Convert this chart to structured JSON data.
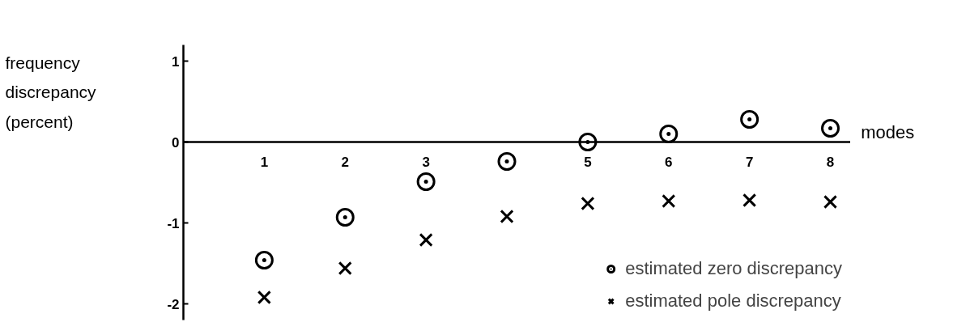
{
  "chart_data": {
    "type": "scatter",
    "xlabel": "modes",
    "ylabel": "frequency discrepancy (percent)",
    "x": [
      1,
      2,
      3,
      4,
      5,
      6,
      7,
      8
    ],
    "series": [
      {
        "name": "estimated zero discrepancy",
        "color": "#000000",
        "marker": "circle",
        "values": [
          -1.46,
          -0.93,
          -0.49,
          -0.24,
          0.0,
          0.1,
          0.28,
          0.17
        ]
      },
      {
        "name": "estimated pole discrepancy",
        "color": "#000000",
        "marker": "cross",
        "values": [
          -1.92,
          -1.56,
          -1.21,
          -0.92,
          -0.76,
          -0.73,
          -0.72,
          -0.74
        ]
      }
    ],
    "xlim": [
      0,
      8.25
    ],
    "ylim": [
      -2.2,
      1.2
    ],
    "xticks": [
      1,
      2,
      3,
      5,
      6,
      7,
      8
    ],
    "yticks": [
      -2,
      -1,
      0,
      1
    ],
    "grid": false,
    "legend": "bottom right"
  }
}
